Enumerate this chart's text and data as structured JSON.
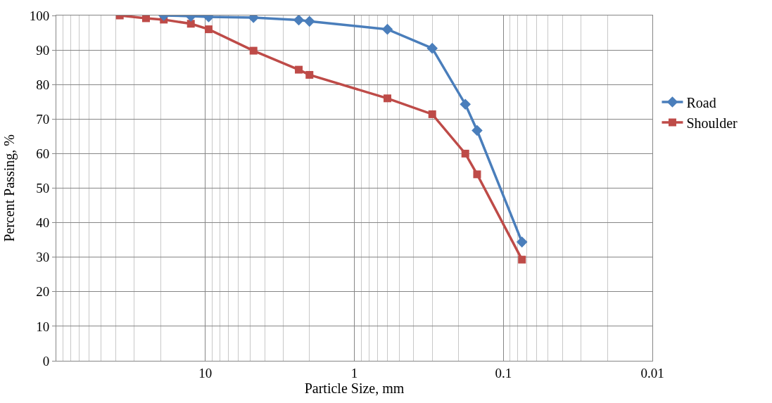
{
  "chart_data": {
    "type": "line",
    "xlabel": "Particle Size, mm",
    "ylabel": "Percent Passing, %",
    "log": "x",
    "grid": true,
    "legend": "right",
    "xlim": [
      100,
      0.01
    ],
    "xticks": [
      {
        "value": 100,
        "label": null
      },
      10,
      1,
      0.1,
      0.01
    ],
    "ylim": [
      0,
      100
    ],
    "yticks": [
      0,
      10,
      20,
      30,
      40,
      50,
      60,
      70,
      80,
      90,
      100
    ],
    "series": [
      {
        "name": "Road",
        "color": "#4a7ebb",
        "marker": "diamond",
        "x": [
          19,
          12.5,
          9.5,
          4.75,
          2.36,
          2.0,
          0.6,
          0.3,
          0.18,
          0.15,
          0.075
        ],
        "values": [
          100,
          99.8,
          99.6,
          99.4,
          98.7,
          98.3,
          96,
          90.5,
          74.3,
          66.7,
          34.4
        ]
      },
      {
        "name": "Shoulder",
        "color": "#be4b48",
        "marker": "square",
        "x": [
          37.5,
          25,
          19,
          12.5,
          9.5,
          4.75,
          2.36,
          2.0,
          0.6,
          0.3,
          0.18,
          0.15,
          0.075
        ],
        "values": [
          100,
          99.2,
          98.8,
          97.6,
          96,
          89.8,
          84.3,
          82.8,
          76,
          71.4,
          60,
          54,
          29.3
        ]
      }
    ]
  }
}
